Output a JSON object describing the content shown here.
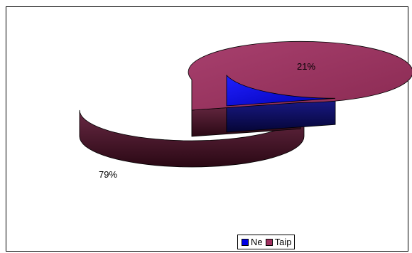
{
  "chart_data": {
    "type": "pie",
    "style": "3d-exploded",
    "categories": [
      "Ne",
      "Taip"
    ],
    "values": [
      21,
      79
    ],
    "data_labels": [
      "21%",
      "79%"
    ],
    "colors": [
      "#0000e6",
      "#a0305f"
    ],
    "legend_position": "bottom"
  }
}
